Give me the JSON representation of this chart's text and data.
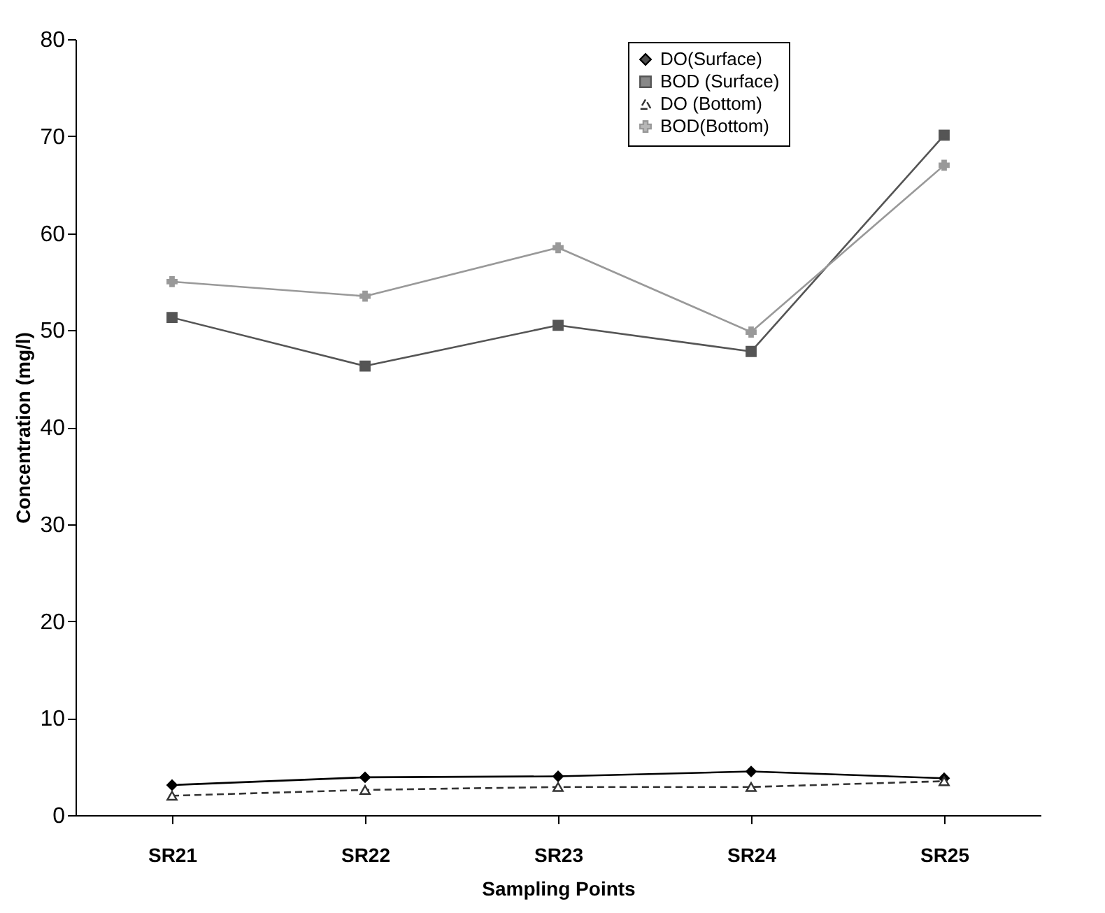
{
  "chart_data": {
    "type": "line",
    "xlabel": "Sampling Points",
    "ylabel": "Concentration (mg/l)",
    "categories": [
      "SR21",
      "SR22",
      "SR23",
      "SR24",
      "SR25"
    ],
    "series": [
      {
        "name": "DO(Surface)",
        "color": "#000000",
        "marker": "diamond",
        "line_style": "solid",
        "values": [
          3.1,
          3.9,
          4.0,
          4.5,
          3.8
        ]
      },
      {
        "name": "BOD (Surface)",
        "color": "#555555",
        "marker": "square",
        "line_style": "solid",
        "values": [
          51.3,
          46.3,
          50.5,
          47.8,
          70.1
        ]
      },
      {
        "name": "DO (Bottom)",
        "color": "#333333",
        "marker": "triangle",
        "line_style": "dashed",
        "values": [
          2.0,
          2.6,
          2.9,
          2.9,
          3.5
        ]
      },
      {
        "name": "BOD(Bottom)",
        "color": "#999999",
        "marker": "cross",
        "line_style": "solid",
        "values": [
          55.0,
          53.5,
          58.5,
          49.8,
          67.0
        ]
      }
    ],
    "ylim": [
      0,
      80
    ],
    "yticks": [
      0,
      10,
      20,
      30,
      40,
      50,
      60,
      70,
      80
    ],
    "grid": false,
    "legend": "top right"
  }
}
